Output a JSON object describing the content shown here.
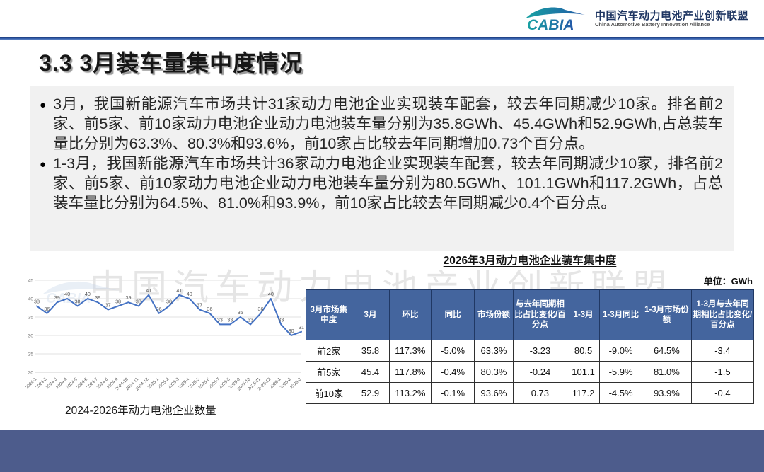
{
  "ui": {
    "bullet": "●"
  },
  "header": {
    "logo_text": "CABIA",
    "org_name_cn": "中国汽车动力电池产业创新联盟",
    "org_name_en": "China Automotive Battery Innovation Alliance"
  },
  "title": "3.3 3月装车量集中度情况",
  "bullets": [
    "3月，我国新能源汽车市场共计31家动力电池企业实现装车配套，较去年同期减少10家。排名前2家、前5家、前10家动力电池企业动力电池装车量分别为35.8GWh、45.4GWh和52.9GWh,占总装车量比分别为63.3%、80.3%和93.6%，前10家占比较去年同期增加0.73个百分点。",
    "1-3月，我国新能源汽车市场共计36家动力电池企业实现装车配套，较去年同期减少10家，排名前2家、前5家、前10家动力电池企业动力电池装车量分别为80.5GWh、101.1GWh和117.2GWh，占总装车量比分别为64.5%、81.0%和93.9%，前10家占比较去年同期减少0.4个百分点。"
  ],
  "watermark": "中国汽车动力电池产业创新联盟",
  "table": {
    "title": "2026年3月动力电池企业装车集中度",
    "unit": "单位：GWh",
    "headers": [
      "3月市场集中度",
      "3月",
      "环比",
      "同比",
      "市场份额",
      "与去年同期相比占比变化/百分点",
      "1-3月",
      "1-3月同比",
      "1-3月市场份额",
      "1-3月与去年同期相比占比变化/百分点"
    ],
    "rows": [
      [
        "前2家",
        "35.8",
        "117.3%",
        "-5.0%",
        "63.3%",
        "-3.23",
        "80.5",
        "-9.0%",
        "64.5%",
        "-3.4"
      ],
      [
        "前5家",
        "45.4",
        "117.8%",
        "-0.4%",
        "80.3%",
        "-0.24",
        "101.1",
        "-5.9%",
        "81.0%",
        "-1.5"
      ],
      [
        "前10家",
        "52.9",
        "113.2%",
        "-0.1%",
        "93.6%",
        "0.73",
        "117.2",
        "-4.5%",
        "93.9%",
        "-0.4"
      ]
    ]
  },
  "chart_data": {
    "type": "line",
    "title": "2024-2026年动力电池企业数量",
    "x": [
      "2024-1",
      "2024-2",
      "2024-3",
      "2024-4",
      "2024-5",
      "2024-6",
      "2024-7",
      "2024-8",
      "2024-9",
      "2024-10",
      "2024-11",
      "2024-12",
      "2025-1",
      "2025-2",
      "2025-3",
      "2025-4",
      "2025-5",
      "2025-6",
      "2025-7",
      "2025-8",
      "2025-9",
      "2025-10",
      "2025-11",
      "2025-12",
      "2026-1",
      "2026-2",
      "2026-3"
    ],
    "values": [
      38,
      36,
      39,
      40,
      38,
      40,
      39,
      37,
      38,
      39,
      38,
      41,
      36,
      38,
      41,
      40,
      37,
      36,
      33,
      33,
      35,
      33,
      36,
      40,
      33,
      30,
      31
    ],
    "ylim": [
      20,
      45
    ],
    "yticks": [
      20,
      25,
      30,
      35,
      40,
      45
    ],
    "line_color": "#4472C4",
    "grid": true,
    "data_labels": true,
    "legend": "none"
  },
  "colors": {
    "table_header_bg": "#44659e",
    "footer_bar": "#4d5c8c",
    "divider_blue": "#2e59a8",
    "title_text": "#161616"
  }
}
